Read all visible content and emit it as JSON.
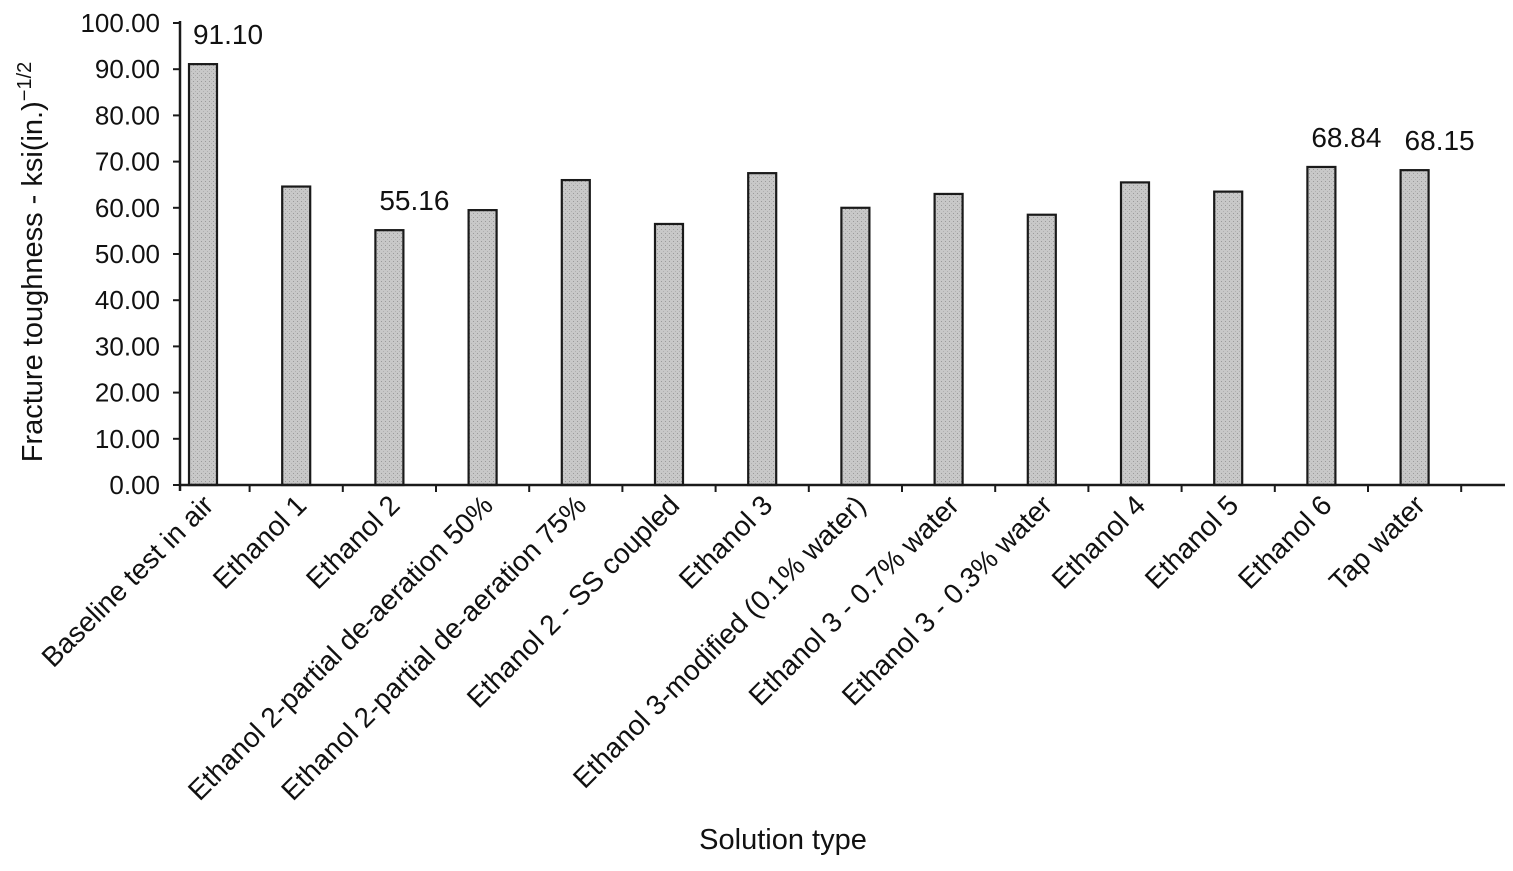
{
  "chart_data": {
    "type": "bar",
    "xlabel": "Solution type",
    "ylabel_main": "Fracture toughness - ksi(in.)",
    "ylabel_sup": "−1/2",
    "ylim": [
      0,
      100
    ],
    "y_ticks": [
      0,
      10,
      20,
      30,
      40,
      50,
      60,
      70,
      80,
      90,
      100
    ],
    "y_tick_labels": [
      "0.00",
      "10.00",
      "20.00",
      "30.00",
      "40.00",
      "50.00",
      "60.00",
      "70.00",
      "80.00",
      "90.00",
      "100.00"
    ],
    "categories": [
      "Baseline test in air",
      "Ethanol 1",
      "Ethanol 2",
      "Ethanol 2-partial de-aeration 50%",
      "Ethanol 2-partial de-aeration 75%",
      "Ethanol 2 - SS coupled",
      "Ethanol 3",
      "Ethanol 3-modified (0.1% water)",
      "Ethanol 3 - 0.7% water",
      "Ethanol 3 - 0.3% water",
      "Ethanol 4",
      "Ethanol 5",
      "Ethanol 6",
      "Tap water"
    ],
    "values": [
      91.1,
      64.6,
      55.16,
      59.5,
      66.0,
      56.5,
      67.5,
      60.0,
      63.0,
      58.5,
      65.5,
      63.5,
      68.84,
      68.15
    ],
    "data_labels": [
      "91.10",
      "",
      "55.16",
      "",
      "",
      "",
      "",
      "",
      "",
      "",
      "",
      "",
      "68.84",
      "68.15"
    ],
    "bar_color": "#c8c8c8",
    "edge_color": "#1a1a1a"
  }
}
